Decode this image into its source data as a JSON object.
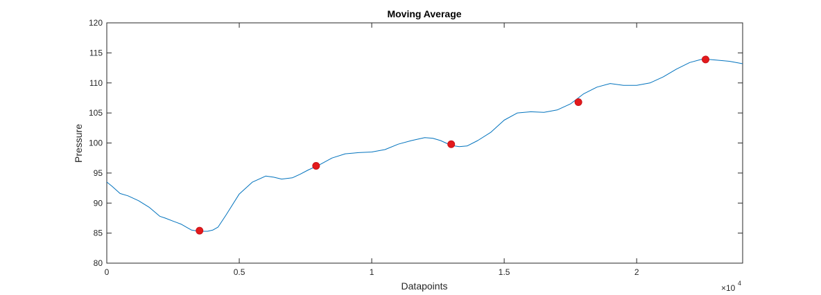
{
  "chart_data": {
    "type": "line",
    "title": "Moving Average",
    "xlabel": "Datapoints",
    "ylabel": "Pressure",
    "xlim": [
      0,
      24000
    ],
    "ylim": [
      80,
      120
    ],
    "x_tick_values": [
      0,
      5000,
      10000,
      15000,
      20000
    ],
    "x_tick_labels": [
      "0",
      "0.5",
      "1",
      "1.5",
      "2"
    ],
    "x_exponent_base": "×10",
    "x_exponent_power": "4",
    "y_ticks": [
      80,
      85,
      90,
      95,
      100,
      105,
      110,
      115,
      120
    ],
    "grid": false,
    "line_color": "#0072BD",
    "marker_color": "#D95319",
    "series": [
      {
        "x": [
          0,
          200,
          500,
          800,
          1200,
          1600,
          2000,
          2200,
          2500,
          2800,
          3000,
          3200,
          3500,
          3800,
          4000,
          4200,
          4500,
          5000,
          5500,
          6000,
          6300,
          6600,
          7000,
          7300,
          7600,
          8000,
          8500,
          9000,
          9500,
          10000,
          10500,
          11000,
          11500,
          12000,
          12300,
          12600,
          13000,
          13300,
          13600,
          14000,
          14500,
          15000,
          15500,
          16000,
          16500,
          17000,
          17500,
          18000,
          18500,
          19000,
          19500,
          20000,
          20500,
          21000,
          21500,
          22000,
          22500,
          23000,
          23500,
          24000
        ],
        "y": [
          93.5,
          92.8,
          91.6,
          91.2,
          90.4,
          89.3,
          87.8,
          87.5,
          87.0,
          86.5,
          86.0,
          85.5,
          85.3,
          85.3,
          85.5,
          86.0,
          88.0,
          91.5,
          93.5,
          94.5,
          94.3,
          94.0,
          94.2,
          94.8,
          95.5,
          96.3,
          97.5,
          98.2,
          98.4,
          98.5,
          98.9,
          99.8,
          100.4,
          100.9,
          100.8,
          100.4,
          99.6,
          99.4,
          99.5,
          100.4,
          101.8,
          103.8,
          105.0,
          105.2,
          105.1,
          105.5,
          106.5,
          108.2,
          109.3,
          109.9,
          109.6,
          109.6,
          110.0,
          111.0,
          112.3,
          113.4,
          114.0,
          113.8,
          113.6,
          113.2
        ]
      }
    ],
    "markers": [
      {
        "x": 3500,
        "y": 85.4
      },
      {
        "x": 7900,
        "y": 96.2
      },
      {
        "x": 13000,
        "y": 99.8
      },
      {
        "x": 17800,
        "y": 106.8
      },
      {
        "x": 22600,
        "y": 113.9
      }
    ]
  }
}
